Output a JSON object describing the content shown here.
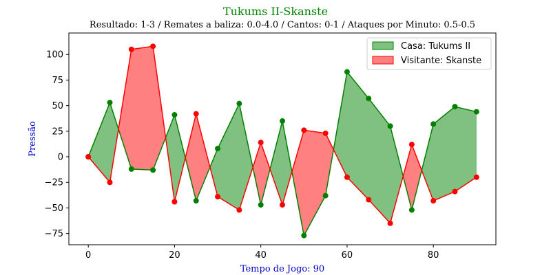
{
  "chart_data": {
    "type": "line",
    "title": "Tukums II-Skanste",
    "subtitle": "Resultado: 1-3 / Remates a baliza: 0.0-4.0 / Cantos: 0-1 / Ataques por Minuto: 0.5-0.5",
    "xlabel": "Tempo de Jogo: 90",
    "ylabel": "Pressão",
    "xlim": [
      -4.5,
      94.5
    ],
    "ylim": [
      -86,
      121
    ],
    "xticks": [
      0,
      20,
      40,
      60,
      80
    ],
    "yticks": [
      -75,
      -50,
      -25,
      0,
      25,
      50,
      75,
      100
    ],
    "x": [
      0,
      5,
      10,
      15,
      20,
      25,
      30,
      35,
      40,
      45,
      50,
      55,
      60,
      65,
      70,
      75,
      80,
      85,
      90
    ],
    "series": [
      {
        "name": "Casa: Tukums II",
        "color": "#008000",
        "fill": "#80c080",
        "values": [
          0,
          53,
          -12,
          -13,
          41,
          -43,
          8,
          52,
          -47,
          35,
          -77,
          -38,
          83,
          57,
          30,
          -52,
          32,
          49,
          44
        ]
      },
      {
        "name": "Visitante: Skanste",
        "color": "#ff0000",
        "fill": "#ff8080",
        "values": [
          0,
          -25,
          105,
          108,
          -44,
          42,
          -39,
          -52,
          14,
          -47,
          26,
          23,
          -20,
          -42,
          -65,
          12,
          -43,
          -34,
          -20
        ]
      }
    ],
    "legend_position": "top-right",
    "grid": false
  }
}
